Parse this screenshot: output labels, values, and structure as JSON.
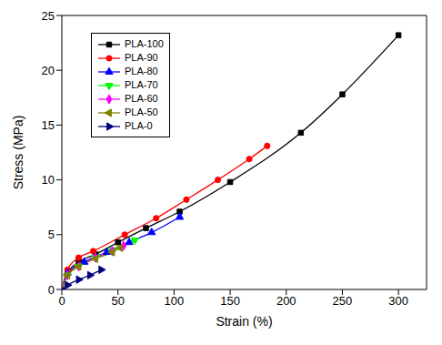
{
  "chart_data": {
    "type": "line",
    "x_label": "Strain (%)",
    "y_label": "Stress (MPa)",
    "xlim": [
      0,
      325
    ],
    "xticks": [
      0,
      50,
      100,
      150,
      200,
      250,
      300
    ],
    "ylim": [
      0,
      25
    ],
    "yticks": [
      0,
      5,
      10,
      15,
      20,
      25
    ],
    "grid": false,
    "legend": "upper left",
    "series": [
      {
        "name": "PLA-100",
        "color": "#000000",
        "marker": "square",
        "x": [
          0,
          5,
          15,
          30,
          50,
          75,
          105,
          150,
          213,
          250,
          300
        ],
        "values": [
          0,
          1.5,
          2.5,
          3.2,
          4.3,
          5.6,
          7.1,
          9.8,
          14.3,
          17.8,
          23.2
        ]
      },
      {
        "name": "PLA-90",
        "color": "#ff0000",
        "marker": "circle",
        "x": [
          0,
          5,
          15,
          28,
          56,
          84,
          111,
          139,
          167,
          183
        ],
        "values": [
          0,
          1.8,
          2.9,
          3.5,
          5.0,
          6.5,
          8.2,
          10.0,
          11.9,
          13.1
        ]
      },
      {
        "name": "PLA-80",
        "color": "#0000ff",
        "marker": "triangle",
        "x": [
          0,
          5,
          20,
          40,
          60,
          80,
          105
        ],
        "values": [
          0,
          1.5,
          2.5,
          3.4,
          4.3,
          5.2,
          6.6
        ]
      },
      {
        "name": "PLA-70",
        "color": "#00ff00",
        "marker": "triangle-down",
        "x": [
          0,
          5,
          15,
          30,
          45,
          65
        ],
        "values": [
          0,
          1.3,
          2.1,
          2.9,
          3.6,
          4.5
        ]
      },
      {
        "name": "PLA-60",
        "color": "#ff00ff",
        "marker": "diamond",
        "x": [
          0,
          5,
          15,
          30,
          45,
          55
        ],
        "values": [
          0,
          1.3,
          2.1,
          2.9,
          3.5,
          4.0
        ]
      },
      {
        "name": "PLA-50",
        "color": "#808000",
        "marker": "triangle-left",
        "x": [
          0,
          5,
          15,
          30,
          45,
          52
        ],
        "values": [
          0,
          1.3,
          2.1,
          2.8,
          3.4,
          3.8
        ]
      },
      {
        "name": "PLA-0",
        "color": "#000080",
        "marker": "triangle-right",
        "x": [
          0,
          5,
          15,
          25,
          35
        ],
        "values": [
          0,
          0.4,
          0.9,
          1.3,
          1.8
        ]
      }
    ]
  }
}
